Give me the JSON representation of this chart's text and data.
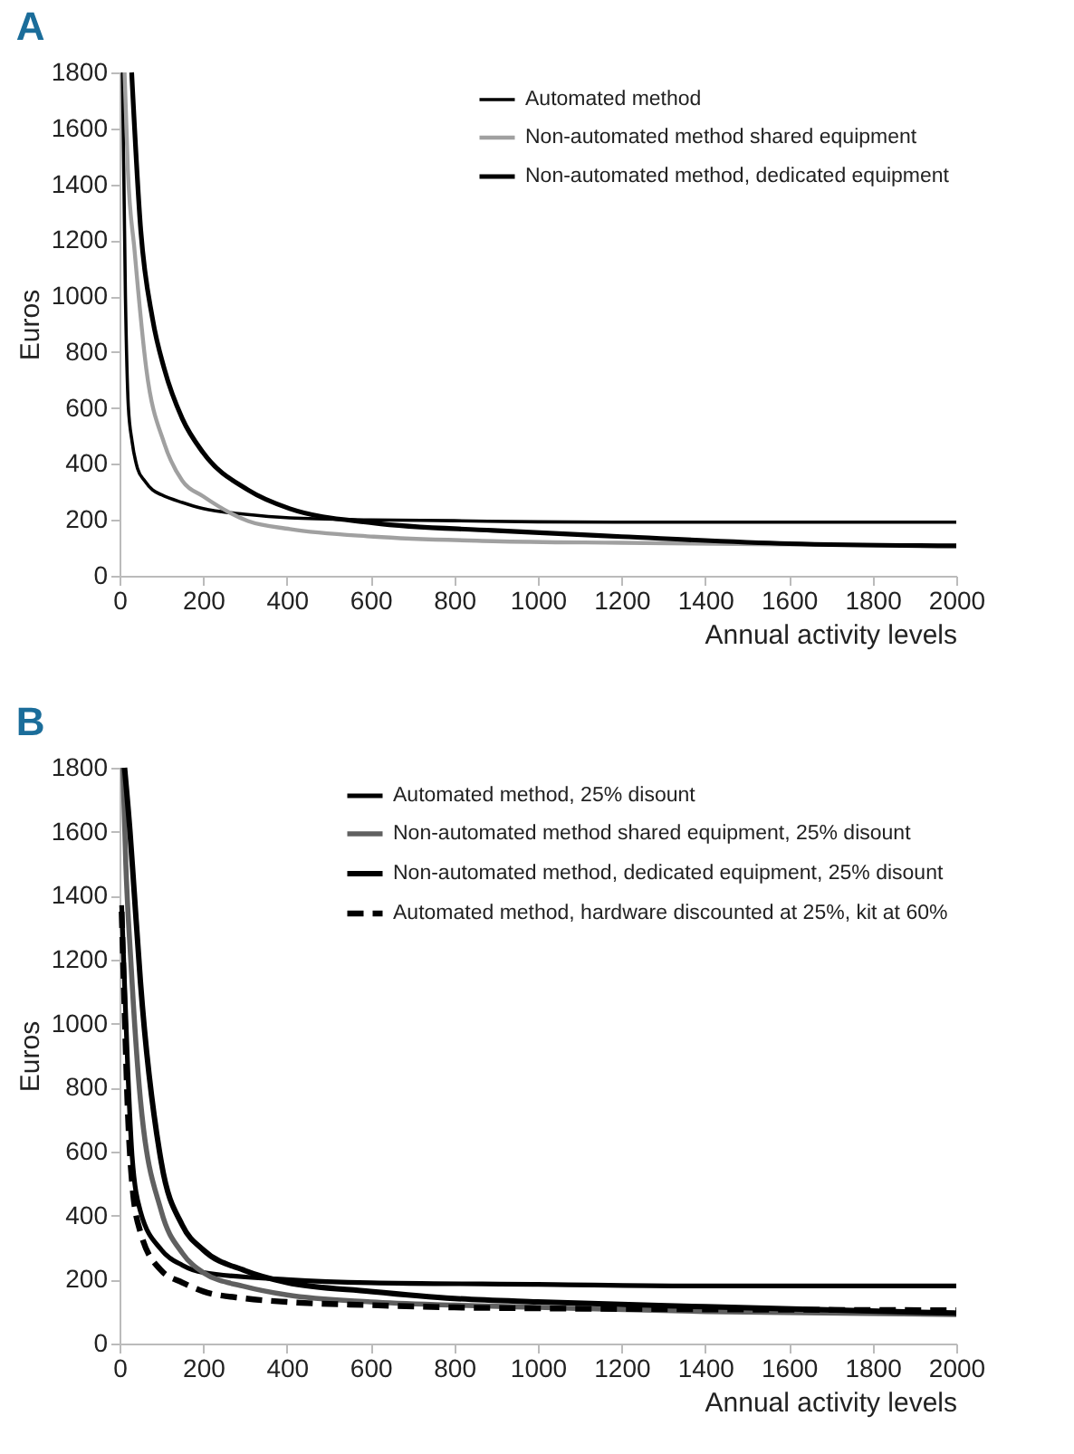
{
  "chart_data": [
    {
      "type": "line",
      "title": "A",
      "xlabel": "Annual activity levels",
      "ylabel": "Euros",
      "xlim": [
        0,
        2000
      ],
      "ylim": [
        0,
        1800
      ],
      "xticks": [
        0,
        200,
        400,
        600,
        800,
        1000,
        1200,
        1400,
        1600,
        1800,
        2000
      ],
      "yticks": [
        0,
        200,
        400,
        600,
        800,
        1000,
        1200,
        1400,
        1600,
        1800
      ],
      "grid": false,
      "legend": "top right",
      "series": [
        {
          "name": "Automated method",
          "color": "#000000",
          "x": [
            7,
            14,
            21,
            30,
            43,
            60,
            79,
            100,
            150,
            200,
            300,
            407,
            600,
            800,
            1000,
            1200,
            1600,
            2000
          ],
          "values": [
            1800,
            1007,
            607,
            480,
            384,
            340,
            307,
            290,
            262,
            240,
            220,
            207,
            200,
            197,
            193,
            192,
            192,
            192
          ]
        },
        {
          "name": "Non-automated method shared equipment",
          "color": "#a0a0a0",
          "x": [
            12,
            20,
            36,
            64,
            107,
            150,
            200,
            307,
            407,
            607,
            893,
            1200,
            1600,
            2000
          ],
          "values": [
            1800,
            1450,
            1162,
            740,
            473,
            340,
            284,
            196,
            167,
            140,
            124,
            118,
            112,
            107
          ]
        },
        {
          "name": "Non-automated method, dedicated equipment",
          "color": "#000000",
          "x": [
            29,
            50,
            79,
            107,
            150,
            200,
            307,
            407,
            607,
            893,
            1200,
            1600,
            2000
          ],
          "values": [
            1800,
            1250,
            918,
            740,
            562,
            440,
            307,
            240,
            189,
            162,
            140,
            115,
            107
          ]
        }
      ]
    },
    {
      "type": "line",
      "title": "B",
      "xlabel": "Annual activity levels",
      "ylabel": "Euros",
      "xlim": [
        0,
        2000
      ],
      "ylim": [
        0,
        1800
      ],
      "xticks": [
        0,
        200,
        400,
        600,
        800,
        1000,
        1200,
        1400,
        1600,
        1800,
        2000
      ],
      "yticks": [
        0,
        200,
        400,
        600,
        800,
        1000,
        1200,
        1400,
        1600,
        1800
      ],
      "grid": false,
      "legend": "top right",
      "series": [
        {
          "name": "Automated method, 25% disount",
          "color": "#000000",
          "x": [
            5,
            10,
            20,
            30,
            50,
            100,
            150,
            200,
            400,
            600,
            1000,
            1400,
            2000
          ],
          "values": [
            1370,
            1196,
            848,
            587,
            413,
            293,
            245,
            222,
            200,
            190,
            185,
            180,
            180
          ]
        },
        {
          "name": "Non-automated method shared equipment, 25% disount",
          "color": "#606060",
          "x": [
            8,
            15,
            27,
            50,
            100,
            150,
            200,
            300,
            400,
            600,
            800,
            1000,
            1400,
            2000
          ],
          "values": [
            1800,
            1500,
            1196,
            761,
            413,
            283,
            222,
            178,
            152,
            130,
            120,
            113,
            100,
            91
          ]
        },
        {
          "name": "Non-automated method, dedicated equipment, 25% disount",
          "color": "#000000",
          "x": [
            12,
            25,
            35,
            50,
            100,
            150,
            200,
            300,
            400,
            600,
            800,
            1000,
            1400,
            2000
          ],
          "values": [
            1800,
            1600,
            1413,
            1130,
            565,
            370,
            293,
            228,
            191,
            163,
            141,
            130,
            115,
            95
          ]
        },
        {
          "name": "Automated method, hardware discounted at 25%, kit at 60%",
          "color": "#000000",
          "line_style": "dashed",
          "x": [
            5,
            10,
            20,
            30,
            50,
            100,
            150,
            200,
            300,
            400,
            600,
            800,
            1000,
            1400,
            2000
          ],
          "values": [
            1350,
            1130,
            717,
            500,
            348,
            228,
            191,
            163,
            141,
            130,
            120,
            113,
            110,
            107,
            104
          ]
        }
      ]
    }
  ]
}
